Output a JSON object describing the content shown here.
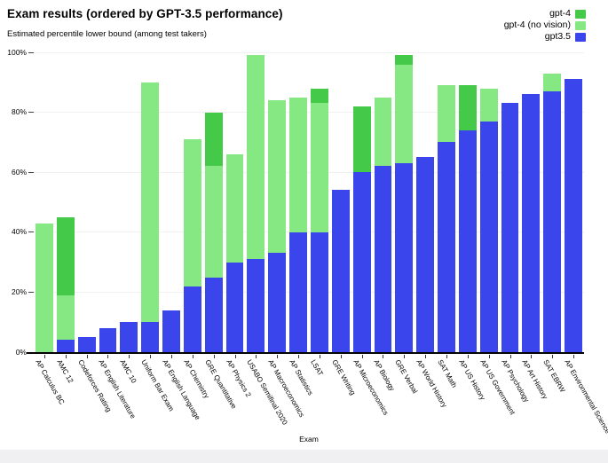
{
  "header": {
    "title": "Exam results (ordered by GPT-3.5 performance)",
    "subtitle": "Estimated percentile lower bound (among test takers)"
  },
  "colors": {
    "gpt4": "#44c948",
    "gpt4_no_vision": "#85e882",
    "gpt35": "#3a46eb",
    "gridline": "#f1f1f1",
    "axis": "#000000",
    "footer_band": "#f0f0f2"
  },
  "legend": {
    "items": [
      {
        "label": "gpt-4",
        "color_key": "gpt4"
      },
      {
        "label": "gpt-4 (no vision)",
        "color_key": "gpt4_no_vision"
      },
      {
        "label": "gpt3.5",
        "color_key": "gpt35"
      }
    ]
  },
  "chart_data": {
    "type": "bar",
    "title": "Exam results (ordered by GPT-3.5 performance)",
    "subtitle": "Estimated percentile lower bound (among test takers)",
    "xlabel": "Exam",
    "ylabel": "Estimated percentile lower bound",
    "ylim": [
      0,
      100
    ],
    "yticks": [
      0,
      20,
      40,
      60,
      80,
      100
    ],
    "ytick_suffix": "%",
    "grid": "horizontal, faint",
    "legend_position": "top-right",
    "overlay_note": "Bars are overlaid from 0 (not stacked): gpt-4 painted in back, then gpt-4 (no vision), then gpt3.5 in front.",
    "categories": [
      "AP Calculus BC",
      "AMC 12",
      "Codeforces Rating",
      "AP English Literature",
      "AMC 10",
      "Uniform Bar Exam",
      "AP English Language",
      "AP Chemistry",
      "GRE Quantitative",
      "AP Physics 2",
      "USABO Semifinal 2020",
      "AP Macroeconomics",
      "AP Statistics",
      "LSAT",
      "GRE Writing",
      "AP Microeconomics",
      "AP Biology",
      "GRE Verbal",
      "AP World History",
      "SAT Math",
      "AP US History",
      "AP US Government",
      "AP Psychology",
      "AP Art History",
      "SAT EBRW",
      "AP Environmental Science"
    ],
    "series": [
      {
        "name": "gpt-4",
        "color_key": "gpt4",
        "values": [
          43,
          45,
          5,
          8,
          6,
          90,
          14,
          71,
          80,
          66,
          99,
          84,
          85,
          88,
          54,
          82,
          85,
          99,
          65,
          89,
          89,
          88,
          83,
          86,
          93,
          91
        ]
      },
      {
        "name": "gpt-4 (no vision)",
        "color_key": "gpt4_no_vision",
        "values": [
          43,
          19,
          5,
          8,
          10,
          90,
          14,
          71,
          62,
          66,
          99,
          84,
          85,
          83,
          54,
          60,
          85,
          96,
          65,
          89,
          74,
          88,
          83,
          86,
          93,
          91
        ]
      },
      {
        "name": "gpt3.5",
        "color_key": "gpt35",
        "values": [
          0,
          4,
          5,
          8,
          10,
          10,
          14,
          22,
          25,
          30,
          31,
          33,
          40,
          40,
          54,
          60,
          62,
          63,
          65,
          70,
          74,
          77,
          83,
          86,
          87,
          91
        ]
      }
    ]
  }
}
